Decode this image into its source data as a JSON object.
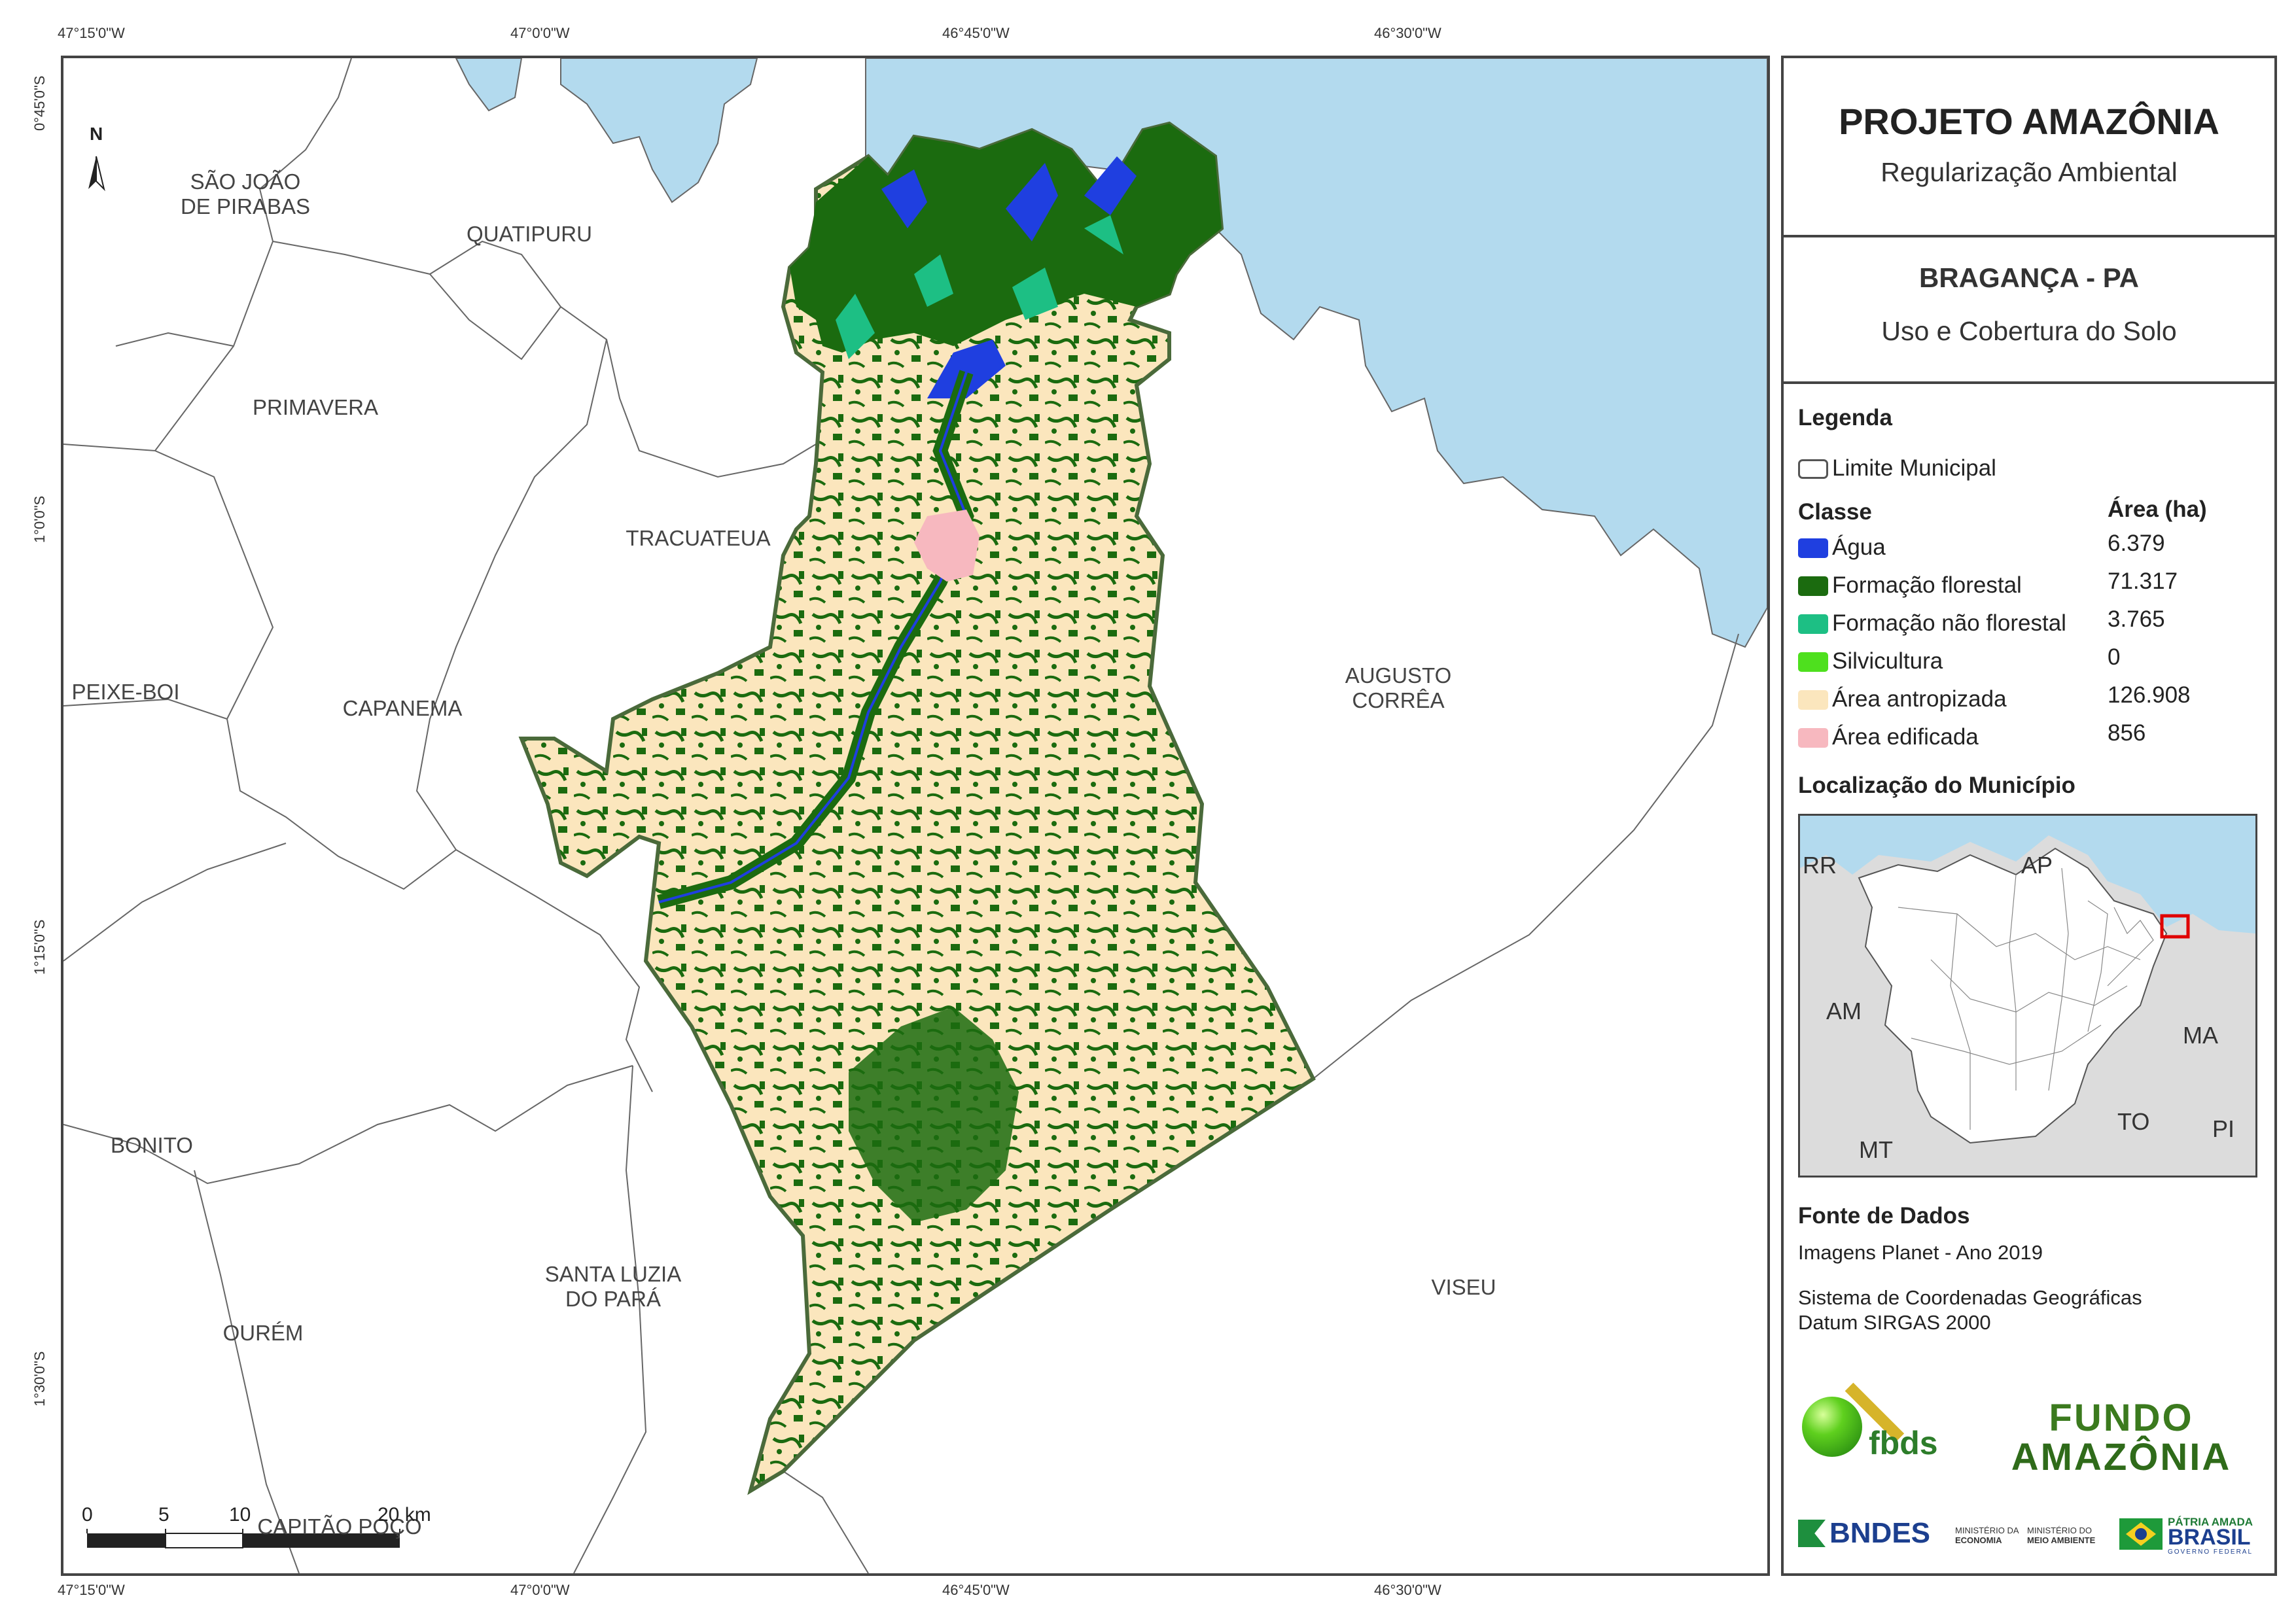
{
  "graticule": {
    "top": [
      "47°15'0\"W",
      "47°0'0\"W",
      "46°45'0\"W",
      "46°30'0\"W"
    ],
    "bottom": [
      "47°15'0\"W",
      "47°0'0\"W",
      "46°45'0\"W",
      "46°30'0\"W"
    ],
    "left": [
      "0°45'0\"S",
      "1°0'0\"S",
      "1°15'0\"S",
      "1°30'0\"S"
    ]
  },
  "map": {
    "north_label": "N",
    "municipalities": [
      {
        "line1": "SÃO JOÃO",
        "line2": "DE PIRABAS"
      },
      {
        "line1": "QUATIPURU",
        "line2": ""
      },
      {
        "line1": "PRIMAVERA",
        "line2": ""
      },
      {
        "line1": "TRACUATEUA",
        "line2": ""
      },
      {
        "line1": "PEIXE-BOI",
        "line2": ""
      },
      {
        "line1": "CAPANEMA",
        "line2": ""
      },
      {
        "line1": "AUGUSTO",
        "line2": "CORRÊA"
      },
      {
        "line1": "BONITO",
        "line2": ""
      },
      {
        "line1": "SANTA LUZIA",
        "line2": "DO PARÁ"
      },
      {
        "line1": "VISEU",
        "line2": ""
      },
      {
        "line1": "OURÉM",
        "line2": ""
      },
      {
        "line1": "CAPITÃO POÇO",
        "line2": ""
      }
    ],
    "scale_bar": {
      "labels": [
        "0",
        "5",
        "10",
        "20 km"
      ]
    }
  },
  "panel": {
    "project_title": "PROJETO AMAZÔNIA",
    "project_subtitle": "Regularização Ambiental",
    "municipality_title": "BRAGANÇA - PA",
    "map_subject": "Uso e Cobertura do Solo",
    "legend_title": "Legenda",
    "boundary_label": "Limite Municipal",
    "class_header": "Classe",
    "area_header": "Área (ha)",
    "classes": [
      {
        "name": "Água",
        "area": "6.379",
        "color": "#1f3fe0"
      },
      {
        "name": "Formação florestal",
        "area": "71.317",
        "color": "#1b6b0f"
      },
      {
        "name": "Formação não florestal",
        "area": "3.765",
        "color": "#1dbf84"
      },
      {
        "name": "Silvicultura",
        "area": "0",
        "color": "#4ee01e"
      },
      {
        "name": "Área antropizada",
        "area": "126.908",
        "color": "#fbe6bd"
      },
      {
        "name": "Área edificada",
        "area": "856",
        "color": "#f7b8bf"
      }
    ],
    "location_title": "Localização do Município",
    "inset_labels": [
      "RR",
      "AP",
      "AM",
      "MA",
      "MT",
      "TO",
      "PI"
    ],
    "sources_title": "Fonte de Dados",
    "source_line": "Imagens Planet - Ano 2019",
    "crs_line1": "Sistema de Coordenadas Geográficas",
    "crs_line2": "Datum SIRGAS 2000",
    "logos": {
      "fbds": "fbds",
      "fundo_line1": "FUNDO",
      "fundo_line2": "AMAZÔNIA",
      "bndes": "BNDES",
      "min_economia_1": "MINISTÉRIO DA",
      "min_economia_2": "ECONOMIA",
      "min_meio_1": "MINISTÉRIO DO",
      "min_meio_2": "MEIO AMBIENTE",
      "patria_1": "PÁTRIA AMADA",
      "patria_2": "BRASIL",
      "patria_3": "GOVERNO FEDERAL"
    },
    "colors": {
      "water": "#b3daee",
      "forest": "#1b6b0f",
      "boundary": "#555555"
    }
  }
}
